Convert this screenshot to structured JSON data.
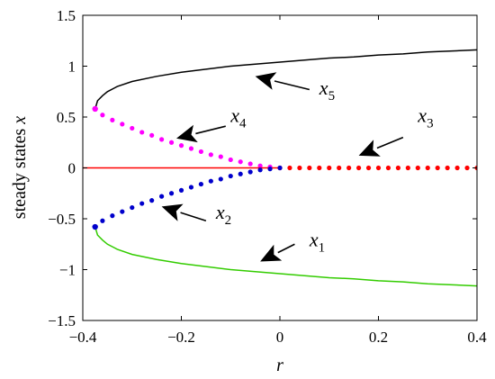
{
  "chart_data": {
    "type": "line",
    "title": "",
    "xlabel": "r",
    "ylabel": "steady states",
    "ylabel_symbol": "x",
    "xlim": [
      -0.4,
      0.4
    ],
    "ylim": [
      -1.5,
      1.5
    ],
    "xticks": [
      -0.4,
      -0.2,
      0,
      0.2,
      0.4
    ],
    "xtick_labels": [
      "−0.4",
      "−0.2",
      "0",
      "0.2",
      "0.4"
    ],
    "yticks": [
      -1.5,
      -1,
      -0.5,
      0,
      0.5,
      1,
      1.5
    ],
    "ytick_labels": [
      "−1.5",
      "−1",
      "−0.5",
      "0",
      "0.5",
      "1",
      "1.5"
    ],
    "grid": false,
    "series": [
      {
        "label_main": "x",
        "label_sub": "5",
        "style": "solid",
        "color": "#000000",
        "x": [
          -0.375,
          -0.37,
          -0.36,
          -0.35,
          -0.33,
          -0.3,
          -0.25,
          -0.2,
          -0.15,
          -0.1,
          -0.05,
          0,
          0.05,
          0.1,
          0.15,
          0.2,
          0.25,
          0.3,
          0.35,
          0.4
        ],
        "y": [
          0.58,
          0.66,
          0.71,
          0.75,
          0.8,
          0.85,
          0.9,
          0.94,
          0.97,
          1.0,
          1.02,
          1.04,
          1.06,
          1.08,
          1.09,
          1.11,
          1.12,
          1.14,
          1.15,
          1.16
        ]
      },
      {
        "label_main": "x",
        "label_sub": "4",
        "style": "dotted",
        "color": "#ff00ff",
        "x": [
          -0.375,
          -0.36,
          -0.34,
          -0.32,
          -0.3,
          -0.28,
          -0.26,
          -0.24,
          -0.22,
          -0.2,
          -0.18,
          -0.16,
          -0.14,
          -0.12,
          -0.1,
          -0.08,
          -0.06,
          -0.04,
          -0.02,
          0
        ],
        "y": [
          0.58,
          0.52,
          0.47,
          0.43,
          0.39,
          0.35,
          0.32,
          0.28,
          0.25,
          0.22,
          0.19,
          0.16,
          0.13,
          0.11,
          0.08,
          0.06,
          0.04,
          0.02,
          0.01,
          0
        ]
      },
      {
        "label_main": "x",
        "label_sub": "3",
        "style": "dotted",
        "color": "#ff0000",
        "x": [
          0,
          0.02,
          0.04,
          0.06,
          0.08,
          0.1,
          0.12,
          0.14,
          0.16,
          0.18,
          0.2,
          0.22,
          0.24,
          0.26,
          0.28,
          0.3,
          0.32,
          0.34,
          0.36,
          0.38,
          0.4
        ],
        "y": [
          0,
          0,
          0,
          0,
          0,
          0,
          0,
          0,
          0,
          0,
          0,
          0,
          0,
          0,
          0,
          0,
          0,
          0,
          0,
          0,
          0
        ]
      },
      {
        "label_main": "",
        "label_sub": "",
        "style": "solid",
        "color": "#ff0000",
        "x": [
          -0.4,
          0
        ],
        "y": [
          0,
          0
        ]
      },
      {
        "label_main": "x",
        "label_sub": "2",
        "style": "dotted",
        "color": "#0000cc",
        "x": [
          -0.375,
          -0.36,
          -0.34,
          -0.32,
          -0.3,
          -0.28,
          -0.26,
          -0.24,
          -0.22,
          -0.2,
          -0.18,
          -0.16,
          -0.14,
          -0.12,
          -0.1,
          -0.08,
          -0.06,
          -0.04,
          -0.02,
          0
        ],
        "y": [
          -0.58,
          -0.52,
          -0.47,
          -0.43,
          -0.39,
          -0.35,
          -0.32,
          -0.28,
          -0.25,
          -0.22,
          -0.19,
          -0.16,
          -0.13,
          -0.11,
          -0.08,
          -0.06,
          -0.04,
          -0.02,
          -0.01,
          0
        ]
      },
      {
        "label_main": "x",
        "label_sub": "1",
        "style": "solid",
        "color": "#33cc00",
        "x": [
          -0.375,
          -0.37,
          -0.36,
          -0.35,
          -0.33,
          -0.3,
          -0.25,
          -0.2,
          -0.15,
          -0.1,
          -0.05,
          0,
          0.05,
          0.1,
          0.15,
          0.2,
          0.25,
          0.3,
          0.35,
          0.4
        ],
        "y": [
          -0.58,
          -0.66,
          -0.71,
          -0.75,
          -0.8,
          -0.85,
          -0.9,
          -0.94,
          -0.97,
          -1.0,
          -1.02,
          -1.04,
          -1.06,
          -1.08,
          -1.09,
          -1.11,
          -1.12,
          -1.14,
          -1.15,
          -1.16
        ]
      }
    ],
    "endpoint_markers": [
      {
        "x": -0.375,
        "y": 0.58,
        "color": "#ff00ff"
      },
      {
        "x": -0.375,
        "y": -0.58,
        "color": "#0000cc"
      }
    ],
    "annotations": [
      {
        "main": "x",
        "sub": "5",
        "text_x": 0.08,
        "text_y": 0.72,
        "arrow_from": [
          0.06,
          0.77
        ],
        "arrow_to": [
          -0.05,
          0.9
        ]
      },
      {
        "main": "x",
        "sub": "4",
        "text_x": -0.1,
        "text_y": 0.45,
        "arrow_from": [
          -0.11,
          0.41
        ],
        "arrow_to": [
          -0.21,
          0.29
        ]
      },
      {
        "main": "x",
        "sub": "3",
        "text_x": 0.28,
        "text_y": 0.45,
        "arrow_from": [
          0.25,
          0.3
        ],
        "arrow_to": [
          0.16,
          0.12
        ]
      },
      {
        "main": "x",
        "sub": "2",
        "text_x": -0.13,
        "text_y": -0.5,
        "arrow_from": [
          -0.15,
          -0.52
        ],
        "arrow_to": [
          -0.24,
          -0.38
        ]
      },
      {
        "main": "x",
        "sub": "1",
        "text_x": 0.06,
        "text_y": -0.77,
        "arrow_from": [
          0.03,
          -0.75
        ],
        "arrow_to": [
          -0.04,
          -0.92
        ]
      }
    ]
  }
}
